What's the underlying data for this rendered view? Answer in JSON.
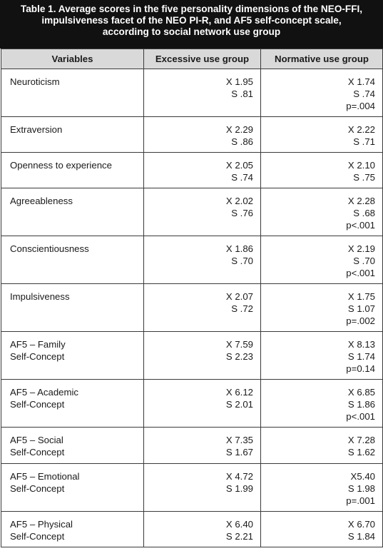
{
  "title": {
    "lines": [
      "Table 1. Average scores in the five personality dimensions of the NEO-FFI,",
      "impulsiveness facet of the NEO PI-R, and AF5 self-concept scale,",
      "according to social network use group"
    ]
  },
  "headers": [
    "Variables",
    "Excessive use group",
    "Normative use group"
  ],
  "rows": [
    {
      "var": [
        "Neuroticism"
      ],
      "excessive": [
        "X 1.95",
        "S .81"
      ],
      "normative": [
        "X 1.74",
        "S .74",
        "p=.004"
      ]
    },
    {
      "var": [
        "Extraversion"
      ],
      "excessive": [
        "X 2.29",
        "S .86"
      ],
      "normative": [
        "X 2.22",
        "S .71"
      ]
    },
    {
      "var": [
        "Openness to experience"
      ],
      "excessive": [
        "X 2.05",
        "S .74"
      ],
      "normative": [
        "X 2.10",
        "S .75"
      ]
    },
    {
      "var": [
        "Agreeableness"
      ],
      "excessive": [
        "X 2.02",
        "S .76"
      ],
      "normative": [
        "X 2.28",
        "S .68",
        "p<.001"
      ]
    },
    {
      "var": [
        "Conscientiousness"
      ],
      "excessive": [
        "X 1.86",
        "S .70"
      ],
      "normative": [
        "X 2.19",
        "S .70",
        "p<.001"
      ]
    },
    {
      "var": [
        "Impulsiveness"
      ],
      "excessive": [
        "X 2.07",
        "S .72"
      ],
      "normative": [
        "X 1.75",
        "S 1.07",
        "p=.002"
      ]
    },
    {
      "var": [
        "AF5 – Family",
        "Self-Concept"
      ],
      "excessive": [
        "X 7.59",
        "S 2.23"
      ],
      "normative": [
        "X 8.13",
        "S 1.74",
        "p=0.14"
      ]
    },
    {
      "var": [
        "AF5 – Academic",
        "Self-Concept"
      ],
      "excessive": [
        "X 6.12",
        "S 2.01"
      ],
      "normative": [
        "X 6.85",
        "S 1.86",
        "p<.001"
      ]
    },
    {
      "var": [
        "AF5 – Social",
        "Self-Concept"
      ],
      "excessive": [
        "X 7.35",
        "S 1.67"
      ],
      "normative": [
        "X 7.28",
        "S 1.62"
      ]
    },
    {
      "var": [
        "AF5 – Emotional",
        "Self-Concept"
      ],
      "excessive": [
        "X 4.72",
        "S 1.99"
      ],
      "normative": [
        "X5.40",
        "S 1.98",
        "p=.001"
      ]
    },
    {
      "var": [
        "AF5 – Physical",
        "Self-Concept"
      ],
      "excessive": [
        "X 6.40",
        "S 2.21"
      ],
      "normative": [
        "X 6.70",
        "S 1.84"
      ]
    }
  ]
}
